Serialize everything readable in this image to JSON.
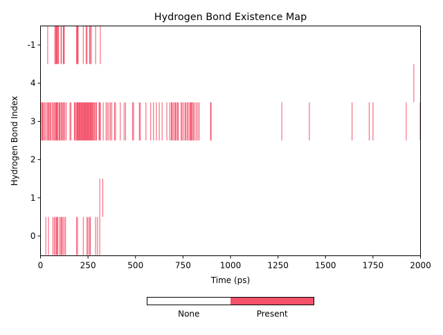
{
  "chart_data": {
    "type": "heatmap",
    "title": "Hydrogen Bond Existence Map",
    "xlabel": "Time (ps)",
    "ylabel": "Hydrogen Bond Index",
    "xlim": [
      0,
      2000
    ],
    "x_ticks": [
      0,
      250,
      500,
      750,
      1000,
      1250,
      1500,
      1750,
      2000
    ],
    "rows": [
      {
        "label": "-1",
        "present_times": [
          38,
          75,
          80,
          82,
          84,
          88,
          92,
          95,
          108,
          110,
          120,
          122,
          125,
          190,
          192,
          195,
          198,
          225,
          240,
          245,
          258,
          262,
          268,
          290,
          315
        ]
      },
      {
        "label": "4",
        "present_times": [
          1965
        ]
      },
      {
        "label": "3",
        "present_times": [
          5,
          10,
          12,
          15,
          22,
          28,
          35,
          40,
          45,
          50,
          55,
          62,
          68,
          72,
          78,
          82,
          85,
          88,
          92,
          98,
          102,
          108,
          112,
          118,
          122,
          128,
          135,
          155,
          160,
          178,
          182,
          188,
          192,
          195,
          198,
          202,
          205,
          208,
          212,
          215,
          218,
          222,
          225,
          228,
          232,
          235,
          238,
          242,
          245,
          248,
          252,
          255,
          258,
          262,
          265,
          268,
          272,
          275,
          280,
          285,
          290,
          295,
          308,
          312,
          315,
          330,
          345,
          352,
          360,
          368,
          375,
          390,
          395,
          420,
          440,
          448,
          485,
          490,
          520,
          525,
          555,
          580,
          595,
          610,
          625,
          640,
          665,
          680,
          688,
          692,
          698,
          705,
          710,
          715,
          722,
          725,
          740,
          745,
          752,
          760,
          765,
          772,
          778,
          785,
          790,
          792,
          795,
          800,
          805,
          812,
          820,
          828,
          835,
          895,
          898,
          1270,
          1415,
          1640,
          1730,
          1750,
          1925,
          2000
        ]
      },
      {
        "label": "2",
        "present_times": []
      },
      {
        "label": "1",
        "present_times": [
          312,
          328
        ]
      },
      {
        "label": "0",
        "present_times": [
          28,
          42,
          65,
          72,
          78,
          84,
          88,
          92,
          102,
          108,
          112,
          118,
          125,
          132,
          190,
          195,
          225,
          245,
          250,
          258,
          262,
          290,
          300,
          312
        ]
      }
    ],
    "legend": {
      "placement": "bottom-center",
      "entries": [
        {
          "label": "None",
          "color": "#ffffff"
        },
        {
          "label": "Present",
          "color": "#f4516a"
        }
      ]
    },
    "colors": {
      "present": "#f4516a",
      "background": "#ffffff",
      "frame": "#000000"
    },
    "grid": false
  }
}
